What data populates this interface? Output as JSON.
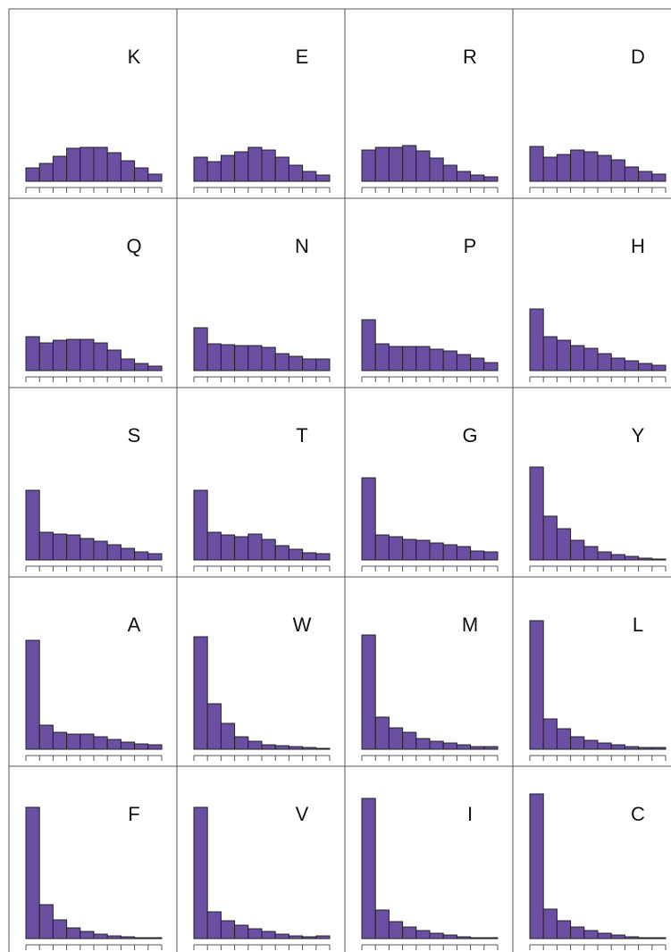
{
  "chart_data": [
    {
      "type": "bar",
      "title": "K",
      "color": "#6a4fa3",
      "values": [
        15,
        20,
        28,
        37,
        38,
        38,
        32,
        23,
        15,
        8
      ]
    },
    {
      "type": "bar",
      "title": "E",
      "color": "#6a4fa3",
      "values": [
        27,
        22,
        29,
        33,
        38,
        35,
        27,
        18,
        11,
        7
      ]
    },
    {
      "type": "bar",
      "title": "R",
      "color": "#6a4fa3",
      "values": [
        35,
        38,
        38,
        40,
        34,
        26,
        18,
        11,
        7,
        5
      ]
    },
    {
      "type": "bar",
      "title": "D",
      "color": "#6a4fa3",
      "values": [
        39,
        27,
        30,
        35,
        33,
        29,
        24,
        16,
        11,
        8
      ]
    },
    {
      "type": "bar",
      "title": "Q",
      "color": "#6a4fa3",
      "values": [
        38,
        31,
        34,
        35,
        35,
        31,
        23,
        13,
        8,
        5
      ]
    },
    {
      "type": "bar",
      "title": "N",
      "color": "#6a4fa3",
      "values": [
        48,
        30,
        29,
        28,
        28,
        26,
        19,
        16,
        13,
        13
      ]
    },
    {
      "type": "bar",
      "title": "P",
      "color": "#6a4fa3",
      "values": [
        57,
        30,
        27,
        27,
        27,
        24,
        22,
        18,
        14,
        9
      ]
    },
    {
      "type": "bar",
      "title": "H",
      "color": "#6a4fa3",
      "values": [
        69,
        38,
        34,
        28,
        25,
        19,
        14,
        11,
        8,
        6
      ]
    },
    {
      "type": "bar",
      "title": "S",
      "color": "#6a4fa3",
      "values": [
        78,
        31,
        29,
        28,
        24,
        21,
        17,
        13,
        9,
        7
      ]
    },
    {
      "type": "bar",
      "title": "T",
      "color": "#6a4fa3",
      "values": [
        78,
        31,
        28,
        26,
        29,
        23,
        16,
        12,
        8,
        7
      ]
    },
    {
      "type": "bar",
      "title": "G",
      "color": "#6a4fa3",
      "values": [
        92,
        28,
        26,
        23,
        22,
        19,
        17,
        15,
        10,
        9
      ]
    },
    {
      "type": "bar",
      "title": "Y",
      "color": "#6a4fa3",
      "values": [
        104,
        49,
        35,
        22,
        15,
        9,
        6,
        4,
        2,
        1
      ]
    },
    {
      "type": "bar",
      "title": "A",
      "color": "#6a4fa3",
      "values": [
        122,
        27,
        19,
        17,
        17,
        14,
        11,
        8,
        6,
        5
      ]
    },
    {
      "type": "bar",
      "title": "W",
      "color": "#6a4fa3",
      "values": [
        126,
        51,
        29,
        14,
        9,
        5,
        4,
        3,
        2,
        1
      ]
    },
    {
      "type": "bar",
      "title": "M",
      "color": "#6a4fa3",
      "values": [
        128,
        36,
        24,
        19,
        12,
        9,
        7,
        5,
        3,
        3
      ]
    },
    {
      "type": "bar",
      "title": "L",
      "color": "#6a4fa3",
      "values": [
        144,
        34,
        23,
        14,
        10,
        7,
        5,
        3,
        2,
        2
      ]
    },
    {
      "type": "bar",
      "title": "F",
      "color": "#6a4fa3",
      "values": [
        147,
        38,
        21,
        12,
        8,
        5,
        3,
        2,
        1,
        1
      ]
    },
    {
      "type": "bar",
      "title": "V",
      "color": "#6a4fa3",
      "values": [
        147,
        30,
        20,
        15,
        11,
        8,
        5,
        3,
        2,
        3
      ]
    },
    {
      "type": "bar",
      "title": "I",
      "color": "#6a4fa3",
      "values": [
        157,
        32,
        19,
        13,
        9,
        6,
        4,
        2,
        1,
        1
      ]
    },
    {
      "type": "bar",
      "title": "C",
      "color": "#6a4fa3",
      "values": [
        162,
        33,
        20,
        13,
        9,
        6,
        4,
        2,
        1,
        1
      ]
    }
  ]
}
